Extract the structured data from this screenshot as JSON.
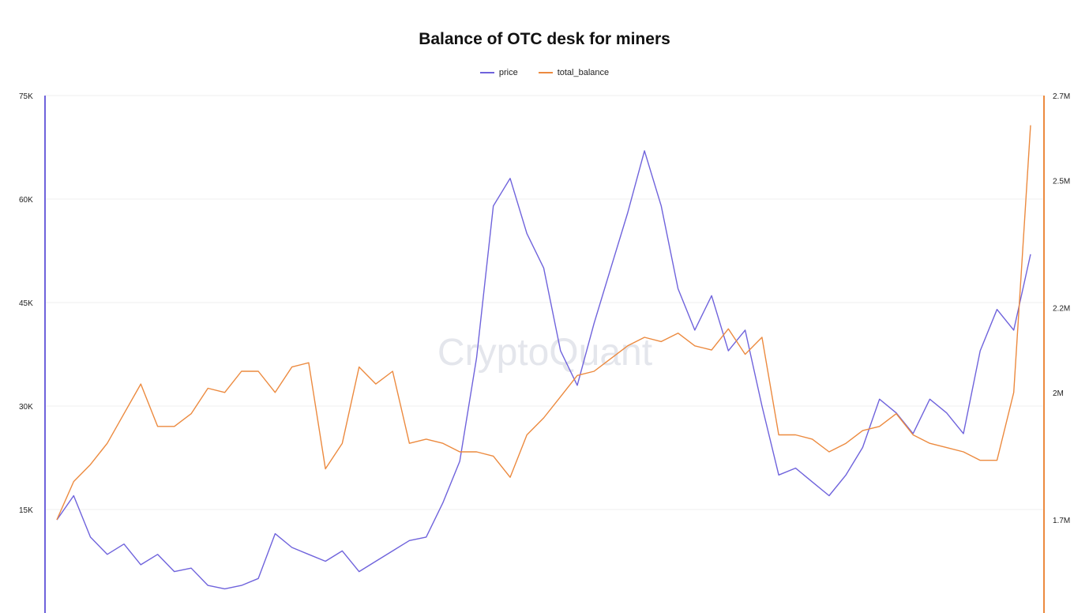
{
  "chart_data": {
    "type": "line",
    "title": "Balance of OTC desk for miners",
    "watermark": "CryptoQuant",
    "legend_position": "top-center",
    "grid": true,
    "y_left": {
      "ticks": [
        15000,
        30000,
        45000,
        60000,
        75000
      ],
      "tick_labels": [
        "15K",
        "30K",
        "45K",
        "60K",
        "75K"
      ],
      "range": [
        0,
        75000
      ]
    },
    "y_right": {
      "ticks": [
        1700000,
        2000000,
        2200000,
        2500000,
        2700000
      ],
      "tick_labels": [
        "1.7M",
        "2M",
        "2.2M",
        "2.5M",
        "2.7M"
      ],
      "range": [
        1480000,
        2700000
      ]
    },
    "series": [
      {
        "name": "price",
        "axis": "left",
        "color": "#6f63dc",
        "values": [
          13500,
          17000,
          11000,
          8500,
          10000,
          7000,
          8500,
          6000,
          6500,
          4000,
          3500,
          4000,
          5000,
          11500,
          9500,
          8500,
          7500,
          9000,
          6000,
          7500,
          9000,
          10500,
          11000,
          16000,
          22000,
          37000,
          59000,
          63000,
          55000,
          50000,
          38000,
          33000,
          42000,
          50000,
          58000,
          67000,
          59000,
          47000,
          41000,
          46000,
          38000,
          41000,
          30000,
          20000,
          21000,
          19000,
          17000,
          20000,
          24000,
          31000,
          29000,
          26000,
          31000,
          29000,
          26000,
          38000,
          44000,
          41000,
          52000
        ]
      },
      {
        "name": "total_balance",
        "axis": "right",
        "color": "#ec8a3f",
        "values": [
          1700000,
          1790000,
          1830000,
          1880000,
          1950000,
          2020000,
          1920000,
          1920000,
          1950000,
          2010000,
          2000000,
          2050000,
          2050000,
          2000000,
          2060000,
          2070000,
          1820000,
          1880000,
          2060000,
          2020000,
          2050000,
          1880000,
          1890000,
          1880000,
          1860000,
          1860000,
          1850000,
          1800000,
          1900000,
          1940000,
          1990000,
          2040000,
          2050000,
          2080000,
          2110000,
          2130000,
          2120000,
          2140000,
          2110000,
          2100000,
          2150000,
          2090000,
          2130000,
          1900000,
          1900000,
          1890000,
          1860000,
          1880000,
          1910000,
          1920000,
          1950000,
          1900000,
          1880000,
          1870000,
          1860000,
          1840000,
          1840000,
          2000000,
          2630000
        ]
      }
    ]
  }
}
